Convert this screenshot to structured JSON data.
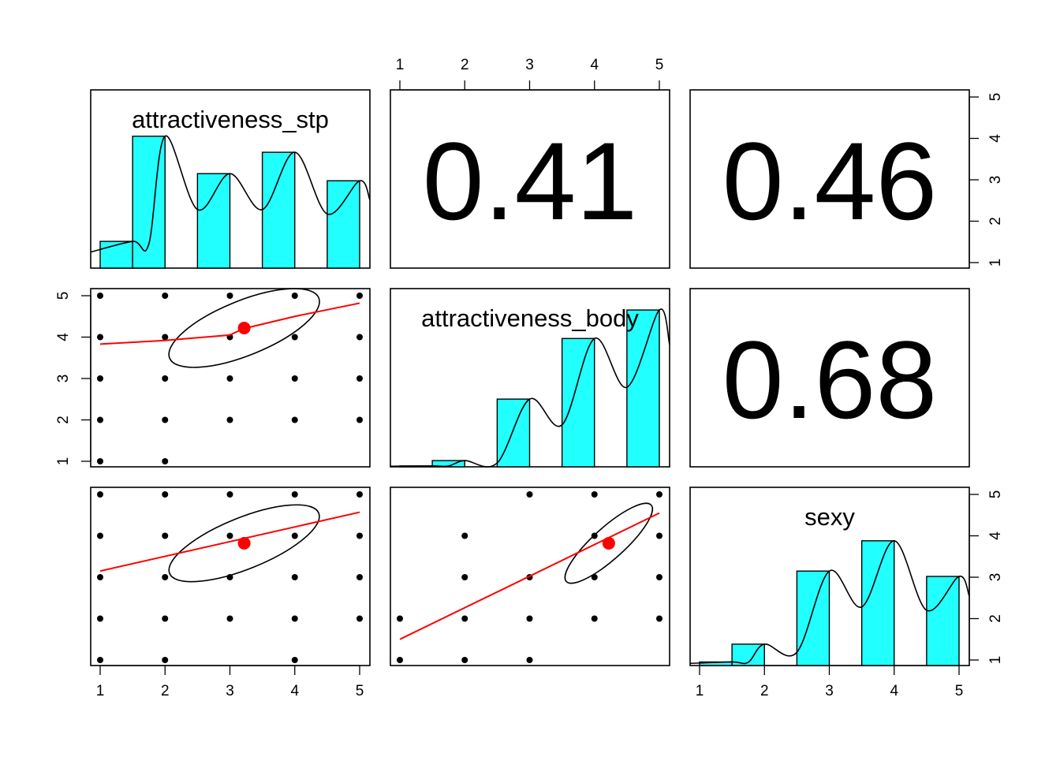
{
  "chart_data": {
    "type": "pairs",
    "variables": [
      "attractiveness_stp",
      "attractiveness_body",
      "sexy"
    ],
    "axis_ticks": [
      "1",
      "2",
      "3",
      "4",
      "5"
    ],
    "colors": {
      "histogram_fill": "#22ffff",
      "fit_line": "#ff0000",
      "mean_point": "#ff0000",
      "points": "#000000"
    },
    "histograms": {
      "attractiveness_stp": {
        "bins": [
          [
            1,
            1.5
          ],
          [
            1.5,
            2
          ],
          [
            2.5,
            3
          ],
          [
            3.5,
            4
          ],
          [
            4.5,
            5
          ]
        ],
        "heights": [
          0.15,
          0.74,
          0.53,
          0.65,
          0.49
        ]
      },
      "attractiveness_body": {
        "bins": [
          [
            1,
            1.5
          ],
          [
            1.5,
            2
          ],
          [
            2.5,
            3
          ],
          [
            3.5,
            4
          ],
          [
            4.5,
            5
          ]
        ],
        "heights": [
          0.005,
          0.035,
          0.38,
          0.72,
          0.88
        ]
      },
      "sexy": {
        "bins": [
          [
            1,
            1.5
          ],
          [
            1.5,
            2
          ],
          [
            2.5,
            3
          ],
          [
            3.5,
            4
          ],
          [
            4.5,
            5
          ]
        ],
        "heights": [
          0.02,
          0.12,
          0.53,
          0.7,
          0.5
        ]
      }
    },
    "correlations": [
      {
        "row": "attractiveness_stp",
        "col": "attractiveness_body",
        "value": "0.41"
      },
      {
        "row": "attractiveness_stp",
        "col": "sexy",
        "value": "0.46"
      },
      {
        "row": "attractiveness_body",
        "col": "sexy",
        "value": "0.68"
      }
    ],
    "scatter": [
      {
        "x": "attractiveness_stp",
        "y": "attractiveness_body",
        "points": [
          [
            1,
            1
          ],
          [
            1,
            2
          ],
          [
            1,
            3
          ],
          [
            1,
            4
          ],
          [
            1,
            5
          ],
          [
            2,
            1
          ],
          [
            2,
            2
          ],
          [
            2,
            3
          ],
          [
            2,
            4
          ],
          [
            2,
            5
          ],
          [
            3,
            2
          ],
          [
            3,
            3
          ],
          [
            3,
            4
          ],
          [
            3,
            5
          ],
          [
            4,
            2
          ],
          [
            4,
            3
          ],
          [
            4,
            4
          ],
          [
            4,
            5
          ],
          [
            5,
            2
          ],
          [
            5,
            3
          ],
          [
            5,
            4
          ],
          [
            5,
            5
          ]
        ],
        "fit": [
          [
            1,
            3.83
          ],
          [
            2,
            3.92
          ],
          [
            3,
            4.05
          ],
          [
            3.2,
            4.2
          ],
          [
            4,
            4.5
          ],
          [
            5,
            4.82
          ]
        ],
        "mean": [
          3.22,
          4.22
        ],
        "ellipse": {
          "cx": 3.22,
          "cy": 4.22,
          "rx": 1.24,
          "ry": 0.66,
          "angle_deg": 22
        }
      },
      {
        "x": "attractiveness_stp",
        "y": "sexy",
        "points": [
          [
            1,
            1
          ],
          [
            1,
            2
          ],
          [
            1,
            3
          ],
          [
            1,
            4
          ],
          [
            1,
            5
          ],
          [
            2,
            1
          ],
          [
            2,
            2
          ],
          [
            2,
            3
          ],
          [
            2,
            4
          ],
          [
            2,
            5
          ],
          [
            3,
            2
          ],
          [
            3,
            3
          ],
          [
            3,
            4
          ],
          [
            3,
            5
          ],
          [
            4,
            1
          ],
          [
            4,
            2
          ],
          [
            4,
            3
          ],
          [
            4,
            4
          ],
          [
            4,
            5
          ],
          [
            5,
            2
          ],
          [
            5,
            3
          ],
          [
            5,
            4
          ],
          [
            5,
            5
          ]
        ],
        "fit": [
          [
            1,
            3.15
          ],
          [
            5,
            4.57
          ]
        ],
        "mean": [
          3.22,
          3.82
        ],
        "ellipse": {
          "cx": 3.22,
          "cy": 3.82,
          "rx": 1.24,
          "ry": 0.62,
          "angle_deg": 22
        }
      },
      {
        "x": "attractiveness_body",
        "y": "sexy",
        "points": [
          [
            1,
            1
          ],
          [
            1,
            2
          ],
          [
            2,
            1
          ],
          [
            2,
            2
          ],
          [
            2,
            3
          ],
          [
            2,
            4
          ],
          [
            3,
            1
          ],
          [
            3,
            2
          ],
          [
            3,
            3
          ],
          [
            3,
            5
          ],
          [
            4,
            2
          ],
          [
            4,
            3
          ],
          [
            4,
            4
          ],
          [
            4,
            5
          ],
          [
            5,
            2
          ],
          [
            5,
            3
          ],
          [
            5,
            4
          ],
          [
            5,
            5
          ]
        ],
        "fit": [
          [
            1,
            1.5
          ],
          [
            5,
            4.55
          ]
        ],
        "mean": [
          4.22,
          3.82
        ],
        "ellipse": {
          "cx": 4.22,
          "cy": 3.82,
          "rx": 0.88,
          "ry": 0.38,
          "angle_deg": 42
        }
      }
    ]
  }
}
